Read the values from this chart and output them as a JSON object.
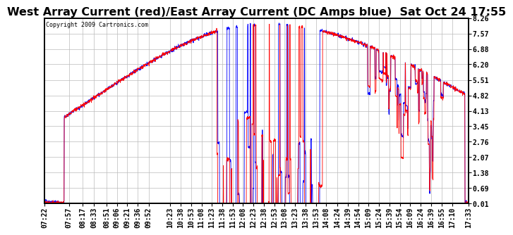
{
  "title": "West Array Current (red)/East Array Current (DC Amps blue)  Sat Oct 24 17:55",
  "copyright": "Copyright 2009 Cartronics.com",
  "yticks": [
    8.26,
    7.57,
    6.88,
    6.2,
    5.51,
    4.82,
    4.13,
    3.45,
    2.76,
    2.07,
    1.38,
    0.69,
    0.01
  ],
  "ylim": [
    0.01,
    8.26
  ],
  "xtick_labels": [
    "07:22",
    "07:57",
    "08:17",
    "08:33",
    "08:51",
    "09:06",
    "09:21",
    "09:36",
    "09:52",
    "10:23",
    "10:38",
    "10:53",
    "11:08",
    "11:23",
    "11:38",
    "11:53",
    "12:08",
    "12:23",
    "12:38",
    "12:53",
    "13:08",
    "13:23",
    "13:38",
    "13:53",
    "14:08",
    "14:24",
    "14:39",
    "14:54",
    "15:09",
    "15:24",
    "15:39",
    "15:54",
    "16:09",
    "16:24",
    "16:39",
    "16:55",
    "17:10",
    "17:33"
  ],
  "background_color": "#ffffff",
  "grid_color": "#bbbbbb",
  "red_line_color": "#ff0000",
  "blue_line_color": "#0000ff",
  "title_fontsize": 11.5,
  "tick_fontsize": 7
}
